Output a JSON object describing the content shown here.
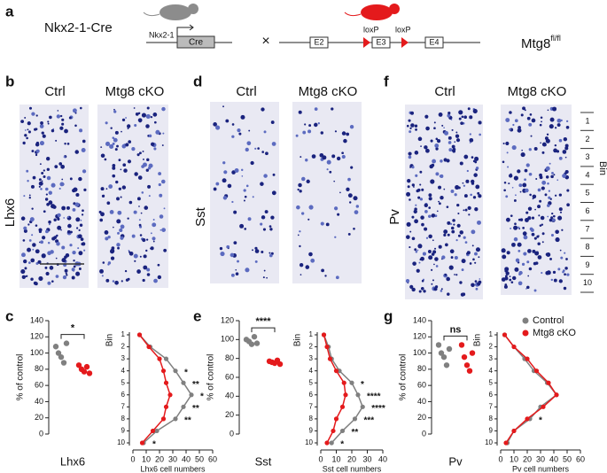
{
  "panel_labels": [
    "a",
    "b",
    "c",
    "d",
    "e",
    "f",
    "g"
  ],
  "schematic": {
    "driver": "Nkx2-1-Cre",
    "promoter": "Nkx2-1",
    "gene": "Cre",
    "cross": "×",
    "exons": [
      "E2",
      "E3",
      "E4"
    ],
    "lox": [
      "loxP",
      "loxP"
    ],
    "allele": "Mtg8",
    "allele_sup": "fl/fl"
  },
  "images": [
    {
      "marker": "Lhx6",
      "conditions": [
        "Ctrl",
        "Mtg8 cKO"
      ]
    },
    {
      "marker": "Sst",
      "conditions": [
        "Ctrl",
        "Mtg8 cKO"
      ]
    },
    {
      "marker": "Pv",
      "conditions": [
        "Ctrl",
        "Mtg8 cKO"
      ]
    }
  ],
  "bins": {
    "labels": [
      "1",
      "2",
      "3",
      "4",
      "5",
      "6",
      "7",
      "8",
      "9",
      "10"
    ],
    "title": "Bin"
  },
  "chart_data": [
    {
      "type": "dot",
      "ylabel": "% of control",
      "xlabel": "Lhx6",
      "ylim": [
        0,
        140
      ],
      "yticks": [
        0,
        20,
        40,
        60,
        80,
        100,
        120,
        140
      ],
      "significance": "*",
      "series": [
        {
          "color": "#808080",
          "values": [
            108,
            100,
            95,
            88,
            112
          ]
        },
        {
          "color": "#e41a1c",
          "values": [
            85,
            80,
            77,
            83,
            75
          ]
        }
      ]
    },
    {
      "type": "profile",
      "ylabel": "Bin",
      "xlabel": "Lhx6 cell numbers",
      "categories": [
        "1",
        "2",
        "3",
        "4",
        "5",
        "6",
        "7",
        "8",
        "9",
        "10"
      ],
      "xlim": [
        0,
        60
      ],
      "xticks": [
        0,
        10,
        20,
        30,
        40,
        50,
        60
      ],
      "series": [
        {
          "color": "#808080",
          "values": [
            5,
            13,
            25,
            32,
            38,
            44,
            38,
            32,
            18,
            8
          ]
        },
        {
          "color": "#e41a1c",
          "values": [
            5,
            12,
            20,
            23,
            25,
            28,
            25,
            23,
            15,
            7
          ]
        }
      ],
      "stars": [
        null,
        null,
        null,
        "*",
        "**",
        "*",
        "**",
        "**",
        null,
        "*"
      ]
    },
    {
      "type": "dot",
      "ylabel": "% of control",
      "xlabel": "Sst",
      "ylim": [
        0,
        120
      ],
      "yticks": [
        0,
        20,
        40,
        60,
        80,
        100,
        120
      ],
      "significance": "****",
      "series": [
        {
          "color": "#808080",
          "values": [
            100,
            98,
            95,
            103,
            96
          ]
        },
        {
          "color": "#e41a1c",
          "values": [
            77,
            76,
            75,
            78,
            74
          ]
        }
      ]
    },
    {
      "type": "profile",
      "ylabel": "Bin",
      "xlabel": "Sst cell numbers",
      "categories": [
        "1",
        "2",
        "3",
        "4",
        "5",
        "6",
        "7",
        "8",
        "9",
        "10"
      ],
      "xlim": [
        0,
        40
      ],
      "xticks": [
        0,
        10,
        20,
        30,
        40
      ],
      "series": [
        {
          "color": "#808080",
          "values": [
            2,
            5,
            7,
            12,
            20,
            24,
            27,
            22,
            14,
            7
          ]
        },
        {
          "color": "#e41a1c",
          "values": [
            2,
            4,
            6,
            10,
            15,
            16,
            14,
            10,
            8,
            4
          ]
        }
      ],
      "stars": [
        null,
        null,
        null,
        null,
        "*",
        "****",
        "****",
        "***",
        "**",
        "*"
      ]
    },
    {
      "type": "dot",
      "ylabel": "% of control",
      "xlabel": "Pv",
      "ylim": [
        0,
        140
      ],
      "yticks": [
        0,
        20,
        40,
        60,
        80,
        100,
        120,
        140
      ],
      "significance": "ns",
      "series": [
        {
          "color": "#808080",
          "values": [
            110,
            100,
            95,
            85,
            105
          ]
        },
        {
          "color": "#e41a1c",
          "values": [
            110,
            95,
            85,
            78,
            100
          ]
        }
      ]
    },
    {
      "type": "profile",
      "ylabel": "Bin",
      "xlabel": "Pv cell numbers",
      "categories": [
        "1",
        "2",
        "3",
        "4",
        "5",
        "6",
        "7",
        "8",
        "9",
        "10"
      ],
      "xlim": [
        0,
        60
      ],
      "xticks": [
        0,
        10,
        20,
        30,
        40,
        50,
        60
      ],
      "legend": "top-right",
      "series": [
        {
          "name": "Control",
          "color": "#808080",
          "values": [
            3,
            10,
            18,
            25,
            35,
            42,
            30,
            22,
            10,
            5
          ]
        },
        {
          "name": "Mtg8 cKO",
          "color": "#e41a1c",
          "values": [
            3,
            10,
            20,
            27,
            36,
            42,
            32,
            20,
            10,
            4
          ]
        }
      ],
      "stars": [
        null,
        null,
        null,
        null,
        null,
        null,
        null,
        "*",
        null,
        null
      ]
    }
  ]
}
